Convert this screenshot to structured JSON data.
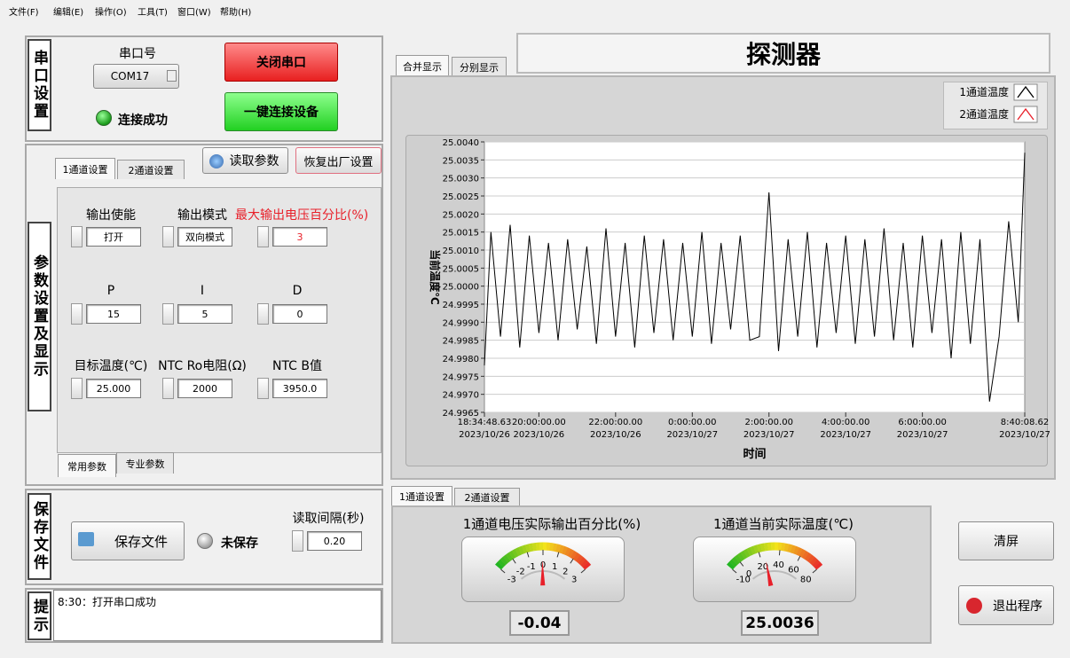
{
  "menu": [
    "文件(F)",
    "编辑(E)",
    "操作(O)",
    "工具(T)",
    "窗口(W)",
    "帮助(H)"
  ],
  "serial": {
    "title": "串口设置",
    "port_label": "串口号",
    "port": "COM17",
    "status": "连接成功",
    "close": "关闭串口",
    "connect": "一键连接设备"
  },
  "params": {
    "title": "参数设置及显示",
    "tabs": [
      "1通道设置",
      "2通道设置"
    ],
    "read": "读取参数",
    "reset": "恢复出厂设置",
    "fields": [
      {
        "label": "输出使能",
        "value": "打开"
      },
      {
        "label": "输出模式",
        "value": "双向模式"
      },
      {
        "label": "最大输出电压百分比(%)",
        "value": "3"
      },
      {
        "label": "P",
        "value": "15"
      },
      {
        "label": "I",
        "value": "5"
      },
      {
        "label": "D",
        "value": "0"
      },
      {
        "label": "目标温度(℃)",
        "value": "25.000"
      },
      {
        "label": "NTC Ro电阻(Ω)",
        "value": "2000"
      },
      {
        "label": "NTC B值",
        "value": "3950.0"
      }
    ],
    "sub_tabs": [
      "常用参数",
      "专业参数"
    ]
  },
  "save": {
    "title": "保存文件",
    "button": "保存文件",
    "status": "未保存",
    "interval_label": "读取间隔(秒)",
    "interval": "0.20"
  },
  "hint": {
    "title": "提示",
    "message": "8:30：打开串口成功"
  },
  "view_tabs": [
    "合并显示",
    "分别显示"
  ],
  "header": "探测器",
  "channel_tabs": [
    "1通道设置",
    "2通道设置"
  ],
  "buttons": {
    "clear": "清屏",
    "exit": "退出程序"
  },
  "chart_data": [
    {
      "type": "line",
      "ylabel": "当前温度℃",
      "xlabel": "时间",
      "x": [
        "2023-10-26T18:34:48.63",
        "2023-10-26T18:45",
        "2023-10-26T19:00",
        "2023-10-26T19:15",
        "2023-10-26T19:30",
        "2023-10-26T19:45",
        "2023-10-26T20:00",
        "2023-10-26T20:15",
        "2023-10-26T20:30",
        "2023-10-26T20:45",
        "2023-10-26T21:00",
        "2023-10-26T21:15",
        "2023-10-26T21:30",
        "2023-10-26T21:45",
        "2023-10-26T22:00",
        "2023-10-26T22:15",
        "2023-10-26T22:30",
        "2023-10-26T22:45",
        "2023-10-26T23:00",
        "2023-10-26T23:15",
        "2023-10-26T23:30",
        "2023-10-26T23:45",
        "2023-10-27T00:00",
        "2023-10-27T00:15",
        "2023-10-27T00:30",
        "2023-10-27T00:45",
        "2023-10-27T01:00",
        "2023-10-27T01:15",
        "2023-10-27T01:30",
        "2023-10-27T01:45",
        "2023-10-27T02:00",
        "2023-10-27T02:15",
        "2023-10-27T02:30",
        "2023-10-27T02:45",
        "2023-10-27T03:00",
        "2023-10-27T03:15",
        "2023-10-27T03:30",
        "2023-10-27T03:45",
        "2023-10-27T04:00",
        "2023-10-27T04:15",
        "2023-10-27T04:30",
        "2023-10-27T04:45",
        "2023-10-27T05:00",
        "2023-10-27T05:15",
        "2023-10-27T05:30",
        "2023-10-27T05:45",
        "2023-10-27T06:00",
        "2023-10-27T06:15",
        "2023-10-27T06:30",
        "2023-10-27T06:45",
        "2023-10-27T07:00",
        "2023-10-27T07:15",
        "2023-10-27T07:30",
        "2023-10-27T07:45",
        "2023-10-27T08:00",
        "2023-10-27T08:15",
        "2023-10-27T08:30",
        "2023-10-27T08:40:08.62"
      ],
      "series": [
        {
          "name": "1通道温度",
          "color": "#000000",
          "values": [
            24.9978,
            25.0015,
            24.9986,
            25.0017,
            24.9983,
            25.0014,
            24.9987,
            25.0012,
            24.9985,
            25.0013,
            24.9988,
            25.0011,
            24.9984,
            25.0016,
            24.9986,
            25.0012,
            24.9983,
            25.0014,
            24.9987,
            25.0013,
            24.9985,
            25.0012,
            24.9986,
            25.0015,
            24.9984,
            25.0012,
            24.9988,
            25.0014,
            24.9985,
            24.9986,
            25.0026,
            24.9982,
            25.0013,
            24.9986,
            25.0015,
            24.9983,
            25.0012,
            24.9987,
            25.0014,
            24.9984,
            25.0013,
            24.9986,
            25.0016,
            24.9985,
            25.0012,
            24.9983,
            25.0014,
            24.9987,
            25.0013,
            24.998,
            25.0015,
            24.9984,
            25.0013,
            24.9968,
            24.9986,
            25.0018,
            24.999,
            25.0037
          ]
        },
        {
          "name": "2通道温度",
          "color": "#e8202a",
          "values": [
            null,
            null,
            null,
            null,
            null,
            null,
            null,
            null,
            null,
            null,
            null,
            null,
            null,
            null,
            null,
            null,
            null,
            null,
            null,
            null,
            null,
            null,
            null,
            null,
            null,
            null,
            null,
            null,
            null,
            null,
            null,
            null,
            null,
            null,
            null,
            null,
            null,
            null,
            null,
            null,
            null,
            null,
            null,
            null,
            null,
            null,
            null,
            null,
            null,
            null,
            null,
            null,
            null,
            null,
            null,
            null,
            null,
            null
          ]
        }
      ],
      "xlim": [
        "2023-10-26T18:34:48.63",
        "2023-10-27T08:40:08.62"
      ],
      "xticks": [
        {
          "value": "2023-10-26T18:34:48.63",
          "label": "18:34:48.63\n2023/10/26"
        },
        {
          "value": "2023-10-26T20:00",
          "label": "20:00:00.00\n2023/10/26"
        },
        {
          "value": "2023-10-26T22:00",
          "label": "22:00:00.00\n2023/10/26"
        },
        {
          "value": "2023-10-27T00:00",
          "label": "0:00:00.00\n2023/10/27"
        },
        {
          "value": "2023-10-27T02:00",
          "label": "2:00:00.00\n2023/10/27"
        },
        {
          "value": "2023-10-27T04:00",
          "label": "4:00:00.00\n2023/10/27"
        },
        {
          "value": "2023-10-27T06:00",
          "label": "6:00:00.00\n2023/10/27"
        },
        {
          "value": "2023-10-27T08:40:08.62",
          "label": "8:40:08.62\n2023/10/27"
        }
      ],
      "ylim": [
        24.9965,
        25.004
      ],
      "yticks": [
        {
          "value": 24.9965,
          "label": "24.9965"
        },
        {
          "value": 24.997,
          "label": "24.9970"
        },
        {
          "value": 24.9975,
          "label": "24.9975"
        },
        {
          "value": 24.998,
          "label": "24.9980"
        },
        {
          "value": 24.9985,
          "label": "24.9985"
        },
        {
          "value": 24.999,
          "label": "24.9990"
        },
        {
          "value": 24.9995,
          "label": "24.9995"
        },
        {
          "value": 25,
          "label": "25.0000"
        },
        {
          "value": 25.0005,
          "label": "25.0005"
        },
        {
          "value": 25.001,
          "label": "25.0010"
        },
        {
          "value": 25.0015,
          "label": "25.0015"
        },
        {
          "value": 25.002,
          "label": "25.0020"
        },
        {
          "value": 25.0025,
          "label": "25.0025"
        },
        {
          "value": 25.003,
          "label": "25.0030"
        },
        {
          "value": 25.0035,
          "label": "25.0035"
        },
        {
          "value": 25.004,
          "label": "25.0040"
        }
      ],
      "grid": true
    },
    {
      "type": "gauge",
      "title": "1通道电压实际输出百分比(%)",
      "value": -0.04,
      "lim": [
        -3,
        3
      ],
      "ticks": [
        -3,
        -2,
        -1,
        0,
        1,
        2,
        3
      ],
      "colors": [
        "#22b522",
        "#f2e31a",
        "#e8202a"
      ]
    },
    {
      "type": "gauge",
      "title": "1通道当前实际温度(℃)",
      "value": 25.0036,
      "lim": [
        -10,
        80
      ],
      "ticks": [
        -10,
        0,
        20,
        40,
        60,
        80
      ],
      "colors": [
        "#22b522",
        "#f2e31a",
        "#e8202a"
      ]
    }
  ]
}
